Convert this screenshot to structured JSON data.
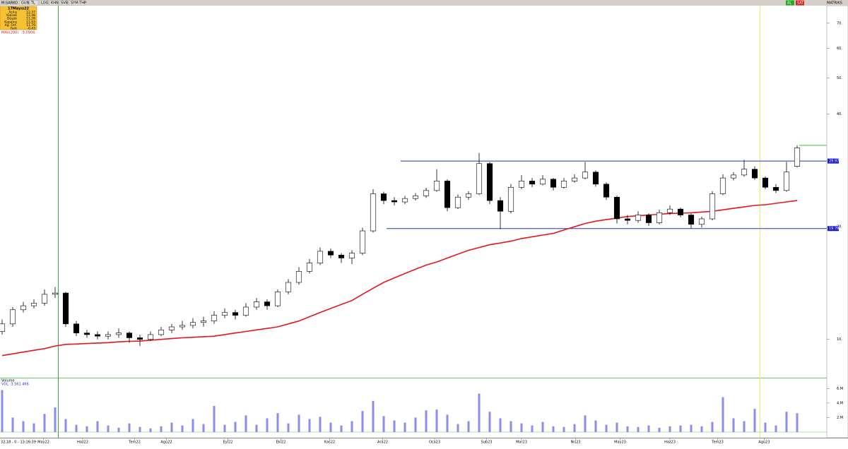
{
  "toolbar": {
    "symbol": "M:SARKO",
    "buttons": [
      "GUN",
      "TL",
      "LOG",
      "KHN",
      "SVB",
      "SYM:THP"
    ],
    "right_buttons": [
      "AL",
      "SAT",
      "MATRIKS"
    ]
  },
  "info_panel": {
    "date": "17Mayıs22",
    "rows": [
      [
        "Açılış",
        "12,37"
      ],
      [
        "Yüksek",
        "12,48"
      ],
      [
        "Düşük",
        "11,28"
      ],
      [
        "Kapanış",
        "11,93"
      ],
      [
        "Ağ. Ort.",
        "11,79"
      ],
      [
        "Fark",
        "-0,43"
      ]
    ]
  },
  "status": "32,18 - 0 - 13:16:39",
  "chart_data": [
    {
      "type": "candlestick",
      "log_scale": true,
      "ylim": [
        7.9,
        79
      ],
      "yticks": [
        {
          "value": 10,
          "label": "10."
        },
        {
          "value": 20,
          "label": "20."
        },
        {
          "value": 40,
          "label": "40."
        },
        {
          "value": 50,
          "label": "50."
        },
        {
          "value": 60,
          "label": "60."
        },
        {
          "value": 70,
          "label": "70."
        }
      ],
      "xlim": [
        -0.2,
        77.8
      ],
      "xticks": [
        {
          "value": 3.9,
          "label": "May22"
        },
        {
          "value": 7.6,
          "label": "Haz22"
        },
        {
          "value": 12.5,
          "label": "Tem22"
        },
        {
          "value": 15.5,
          "label": "Agu22"
        },
        {
          "value": 21.3,
          "label": "Eyl22"
        },
        {
          "value": 26.3,
          "label": "Eki22"
        },
        {
          "value": 30.9,
          "label": "Kas22"
        },
        {
          "value": 35.9,
          "label": "Ara22"
        },
        {
          "value": 40.8,
          "label": "Oca23"
        },
        {
          "value": 45.7,
          "label": "Sub23"
        },
        {
          "value": 49,
          "label": "Mar23"
        },
        {
          "value": 54.1,
          "label": "Nis23"
        },
        {
          "value": 58.3,
          "label": "May23"
        },
        {
          "value": 63,
          "label": "Haz23"
        },
        {
          "value": 67.5,
          "label": "Tem23"
        },
        {
          "value": 71.9,
          "label": "Agu23"
        }
      ],
      "up_color": "#ffffff",
      "down_color": "#000000",
      "open": [
        10.5,
        11.0,
        12.0,
        12.3,
        12.5,
        13.2,
        13.3,
        11.0,
        10.4,
        10.3,
        10.2,
        10.3,
        10.4,
        10.1,
        10.0,
        10.3,
        10.6,
        10.8,
        10.9,
        11.1,
        11.2,
        11.6,
        11.8,
        11.6,
        12.2,
        12.6,
        12.3,
        13.4,
        14.2,
        15.2,
        16.0,
        17.2,
        16.8,
        16.5,
        17.0,
        19.5,
        24.5,
        23.5,
        23.3,
        23.8,
        24.2,
        25.0,
        26.5,
        22.5,
        24.0,
        24.5,
        29.5,
        23.5,
        22.0,
        25.5,
        26.5,
        26.0,
        26.8,
        25.5,
        26.5,
        27.0,
        28.0,
        26.0,
        24.0,
        21.0,
        20.8,
        21.5,
        20.5,
        21.8,
        22.3,
        21.5,
        20.3,
        21.0,
        24.5,
        27.0,
        27.5,
        28.5,
        27.0,
        25.5,
        25.0,
        29.0
      ],
      "high": [
        11.3,
        12.2,
        12.6,
        12.8,
        13.6,
        13.8,
        13.4,
        11.2,
        10.6,
        10.5,
        10.5,
        10.7,
        10.5,
        10.3,
        10.5,
        10.8,
        11.0,
        11.2,
        11.4,
        11.5,
        11.9,
        12.1,
        12.0,
        12.5,
        12.9,
        12.8,
        13.6,
        14.5,
        15.6,
        16.4,
        17.6,
        17.5,
        17.0,
        17.3,
        19.9,
        25.2,
        24.8,
        24.0,
        24.2,
        24.6,
        25.4,
        28.5,
        26.8,
        24.4,
        24.9,
        31.5,
        29.8,
        24.0,
        26.0,
        27.5,
        27.0,
        27.5,
        27.0,
        27.0,
        27.6,
        29.8,
        28.3,
        26.3,
        24.2,
        21.5,
        22.0,
        21.7,
        22.2,
        22.8,
        22.5,
        21.7,
        21.3,
        24.9,
        27.6,
        28.0,
        30.2,
        29.0,
        27.3,
        26.0,
        29.8,
        33.0
      ],
      "low": [
        10.3,
        10.8,
        11.8,
        12.1,
        12.3,
        12.9,
        10.8,
        10.2,
        10.1,
        10.0,
        10.0,
        10.1,
        9.8,
        9.6,
        9.9,
        10.2,
        10.4,
        10.6,
        10.7,
        10.8,
        11.0,
        11.4,
        11.3,
        11.5,
        12.0,
        12.0,
        12.2,
        13.2,
        14.0,
        15.0,
        15.8,
        16.5,
        16.0,
        15.9,
        16.8,
        19.3,
        23.0,
        22.8,
        23.0,
        23.5,
        23.9,
        24.8,
        22.0,
        22.3,
        23.6,
        24.3,
        23.0,
        19.7,
        21.7,
        25.2,
        25.5,
        25.8,
        25.0,
        25.3,
        26.2,
        26.8,
        25.6,
        23.6,
        20.4,
        20.3,
        20.5,
        20.1,
        20.3,
        21.5,
        21.2,
        19.8,
        19.9,
        20.8,
        24.3,
        26.6,
        27.2,
        26.7,
        25.2,
        24.6,
        24.8,
        28.8
      ],
      "close": [
        11.0,
        12.0,
        12.3,
        12.5,
        13.2,
        13.3,
        11.0,
        10.4,
        10.3,
        10.2,
        10.3,
        10.4,
        10.1,
        10.0,
        10.3,
        10.6,
        10.8,
        10.9,
        11.1,
        11.2,
        11.6,
        11.8,
        11.6,
        12.2,
        12.6,
        12.3,
        13.4,
        14.2,
        15.2,
        16.0,
        17.2,
        16.8,
        16.5,
        17.0,
        19.5,
        24.5,
        23.5,
        23.3,
        23.8,
        24.2,
        25.0,
        26.5,
        22.5,
        24.0,
        24.5,
        29.5,
        23.5,
        22.0,
        25.5,
        26.5,
        26.0,
        26.8,
        25.5,
        26.5,
        27.0,
        28.0,
        26.0,
        24.0,
        21.0,
        20.8,
        21.5,
        20.5,
        21.8,
        22.3,
        21.5,
        20.3,
        21.0,
        24.5,
        27.0,
        27.5,
        28.5,
        27.0,
        25.5,
        25.0,
        28.0,
        32.5
      ],
      "ma": {
        "name": "MAV(200)",
        "readout": ":9,0904",
        "color": "#e8141e",
        "values": [
          9.05,
          9.15,
          9.25,
          9.35,
          9.45,
          9.6,
          9.7,
          9.72,
          9.75,
          9.78,
          9.8,
          9.85,
          9.88,
          9.9,
          9.95,
          10.0,
          10.05,
          10.1,
          10.13,
          10.17,
          10.2,
          10.3,
          10.4,
          10.5,
          10.6,
          10.7,
          10.8,
          11.0,
          11.2,
          11.5,
          11.8,
          12.1,
          12.4,
          12.7,
          13.2,
          13.7,
          14.2,
          14.6,
          15.0,
          15.4,
          15.8,
          16.1,
          16.5,
          16.9,
          17.3,
          17.6,
          17.9,
          18.1,
          18.3,
          18.6,
          18.8,
          19.0,
          19.2,
          19.6,
          20.0,
          20.4,
          20.7,
          20.9,
          21.1,
          21.3,
          21.4,
          21.5,
          21.6,
          21.7,
          21.75,
          21.8,
          21.9,
          22.0,
          22.2,
          22.4,
          22.6,
          22.8,
          22.9,
          23.1,
          23.3,
          23.5
        ]
      },
      "hlines": [
        {
          "value": 29.97,
          "color": "#2233cc"
        },
        {
          "value": 19.78,
          "color": "#2233cc"
        },
        {
          "value": 33.0,
          "color": "#33cc33"
        }
      ]
    },
    {
      "type": "bar",
      "title": "Volume",
      "readout": "VOL :3.561.466",
      "color": "#8c8cf0",
      "ylim": [
        0,
        7.3
      ],
      "yticks": [
        {
          "value": 2,
          "label": "2.M"
        },
        {
          "value": 4,
          "label": "4.M"
        },
        {
          "value": 6,
          "label": "6.M"
        }
      ],
      "values": [
        5.8,
        2.0,
        1.5,
        1.2,
        2.5,
        3.4,
        1.8,
        1.0,
        0.8,
        1.5,
        0.9,
        0.6,
        1.2,
        0.7,
        0.5,
        0.8,
        1.3,
        0.9,
        1.8,
        1.1,
        3.6,
        1.0,
        1.4,
        2.3,
        1.0,
        1.9,
        2.6,
        1.2,
        2.4,
        1.8,
        2.1,
        1.3,
        0.9,
        1.5,
        2.9,
        4.3,
        2.2,
        1.6,
        1.3,
        2.0,
        3.0,
        3.1,
        2.4,
        1.1,
        1.5,
        5.3,
        2.8,
        1.9,
        1.5,
        1.2,
        0.9,
        1.4,
        0.8,
        0.7,
        1.1,
        2.3,
        1.6,
        1.0,
        1.3,
        0.8,
        0.7,
        0.9,
        0.6,
        0.8,
        0.9,
        1.0,
        0.8,
        1.4,
        4.8,
        1.9,
        1.5,
        3.2,
        1.3,
        0.9,
        2.8,
        2.6
      ]
    }
  ]
}
